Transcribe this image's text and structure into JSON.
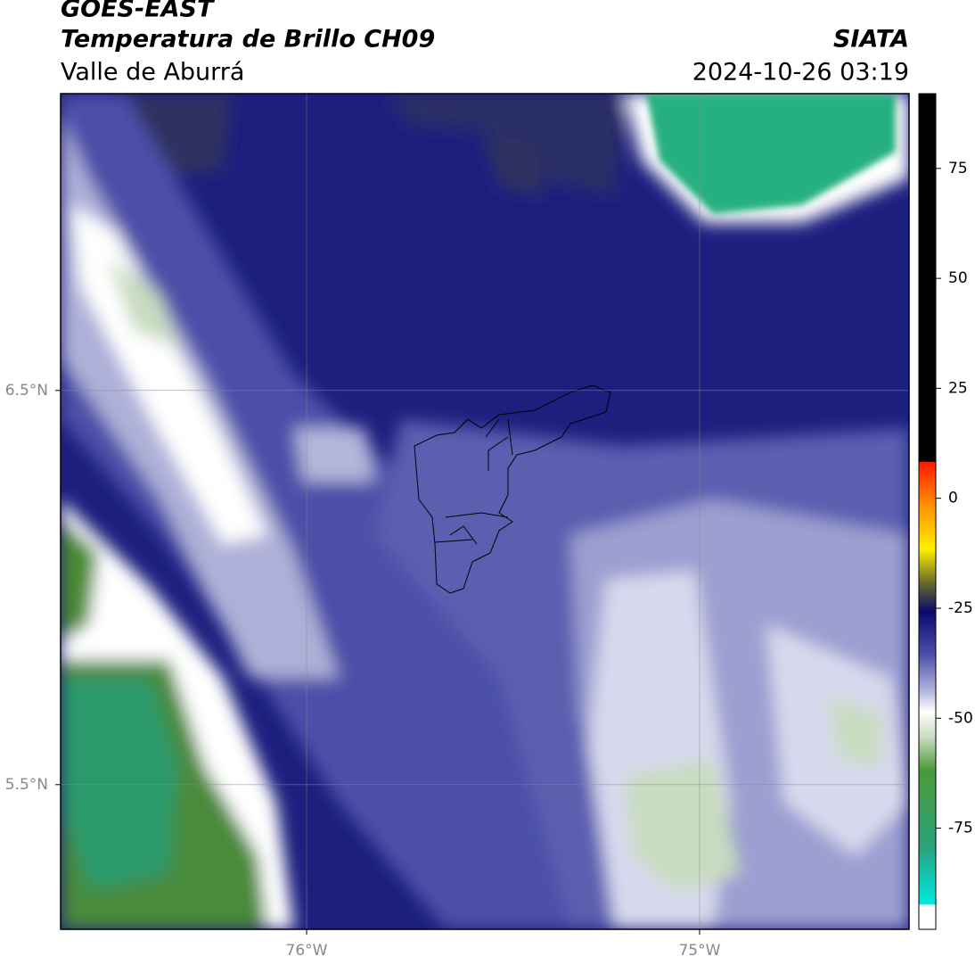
{
  "chart_data": {
    "type": "map",
    "title": "GOES-EAST",
    "subtitle": "Temperatura de Brillo CH09",
    "region": "Valle de Aburrá",
    "source": "SIATA",
    "datetime": "2024-10-26 03:19",
    "xlim": [
      -76.626,
      -74.467
    ],
    "ylim": [
      5.133,
      7.253
    ],
    "xticks": [
      {
        "value": -76,
        "label": "76°W"
      },
      {
        "value": -75,
        "label": "75°W"
      }
    ],
    "yticks": [
      {
        "value": 6.5,
        "label": "6.5°N"
      },
      {
        "value": 5.5,
        "label": "5.5°N"
      }
    ],
    "grid": true,
    "colorbar": {
      "lim": [
        -98,
        92
      ],
      "ticks": [
        75,
        50,
        25,
        0,
        -25,
        -50,
        -75
      ]
    }
  }
}
